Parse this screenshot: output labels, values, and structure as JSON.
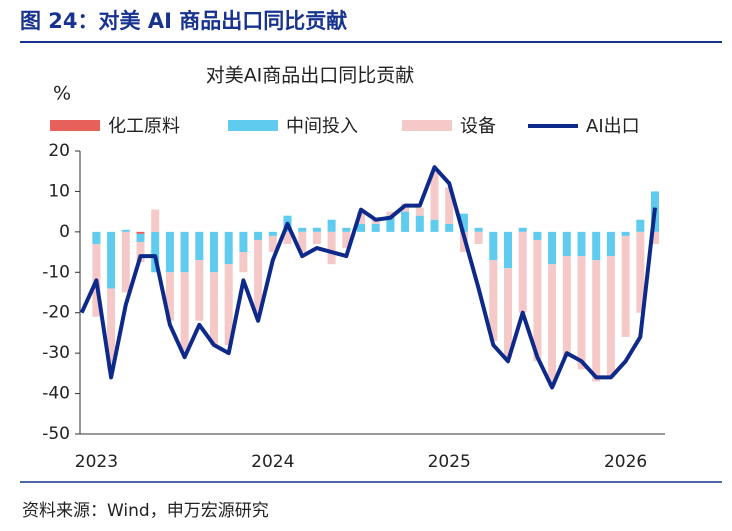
{
  "figure_title": "图 24：对美 AI 商品出口同比贡献",
  "source": "资料来源：Wind，申万宏源研究",
  "chart_data": {
    "type": "bar_line",
    "title": "对美AI商品出口同比贡献",
    "y_label": "%",
    "categories": [
      null,
      "2023",
      null,
      null,
      null,
      null,
      null,
      null,
      null,
      null,
      null,
      null,
      null,
      "2024",
      null,
      null,
      null,
      null,
      null,
      null,
      null,
      null,
      null,
      null,
      null,
      "2025",
      null,
      null,
      null,
      null,
      null,
      null,
      null,
      null,
      null,
      null,
      null,
      "2026",
      null,
      null
    ],
    "ylim": [
      -50,
      20
    ],
    "yticks": [
      20,
      10,
      0,
      -10,
      -20,
      -30,
      -40,
      -50
    ],
    "series": [
      {
        "name": "化工原料",
        "type": "bar",
        "color": "#e8605a",
        "values": [
          0,
          0,
          0,
          0,
          -0.5,
          0,
          0,
          0,
          0,
          0,
          0,
          0,
          0,
          0,
          0,
          0,
          0,
          0,
          0,
          0,
          0,
          0,
          0,
          0,
          0,
          0,
          0,
          0,
          0,
          0,
          0,
          0,
          0,
          0,
          0,
          0,
          0,
          0,
          0,
          0
        ]
      },
      {
        "name": "中间投入",
        "type": "bar",
        "color": "#5ecbef",
        "values": [
          0,
          -3,
          -14,
          0.5,
          -2,
          -10,
          -10,
          -10,
          -7,
          -10,
          -8,
          -5,
          -2,
          -1,
          4,
          1,
          1,
          3,
          1,
          2,
          2,
          4,
          5,
          4,
          3,
          2,
          4.5,
          1,
          -7,
          -9,
          1,
          -2,
          -8,
          -6,
          -6,
          -7,
          -6,
          -1,
          3,
          10
        ]
      },
      {
        "name": "设备",
        "type": "bar",
        "color": "#f6c9c9",
        "values": [
          0,
          -18,
          -20,
          -15,
          -5,
          5.5,
          -12,
          -20,
          -15,
          -18,
          -20,
          -5,
          -18,
          -4,
          -3,
          -5,
          -3,
          -8,
          -4,
          3,
          1,
          1,
          2,
          2,
          12,
          9,
          -5,
          -3,
          -20,
          -22,
          -20,
          -30,
          -30,
          -25,
          -28,
          -30,
          -30,
          -25,
          -20,
          -3
        ]
      },
      {
        "name": "AI出口",
        "type": "line",
        "color": "#0d2a8a",
        "values": [
          -20,
          -12,
          -36,
          -18,
          -6,
          -6,
          -23,
          -31,
          -23,
          -28,
          -30,
          -12,
          -22,
          -7,
          2,
          -6,
          -4,
          -5,
          -6,
          5.5,
          3,
          3.5,
          6.5,
          6.5,
          16,
          12,
          -1,
          -14,
          -28,
          -32,
          -20,
          -31,
          -38.5,
          -30,
          -32,
          -36,
          -36,
          -32,
          -26,
          6
        ]
      }
    ]
  }
}
